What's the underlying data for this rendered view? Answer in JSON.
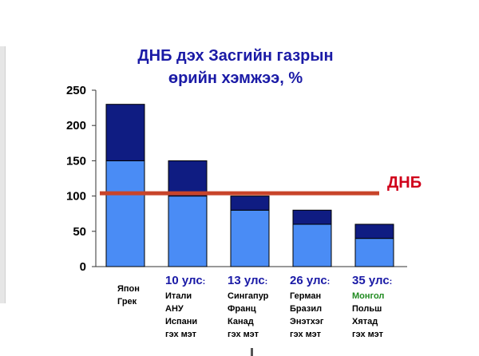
{
  "title_lines": [
    "ДНБ дэх Засгийн газрын",
    "өрийн хэмжээ, %"
  ],
  "reference": {
    "label": "ДНБ",
    "value": 104,
    "color": "#c8442a"
  },
  "colors": {
    "lower": "#4a8cf5",
    "upper": "#0f1c82",
    "title": "#1a1aa6",
    "green": "#1f8a1f"
  },
  "chart_data": {
    "type": "bar",
    "stacked": true,
    "title": "ДНБ дэх Засгийн газрын өрийн хэмжээ, %",
    "ylim": [
      0,
      250
    ],
    "yticks": [
      0,
      50,
      100,
      150,
      200,
      250
    ],
    "categories": [
      {
        "head": "",
        "lines": [
          "Япон",
          "Грек"
        ]
      },
      {
        "head": "10 улс",
        "lines": [
          "Итали",
          "АНУ",
          "Испани",
          "гэх мэт"
        ]
      },
      {
        "head": "13 улс",
        "lines": [
          "Сингапур",
          "Франц",
          "Канад",
          "гэх мэт"
        ]
      },
      {
        "head": "26 улс",
        "lines": [
          "Герман",
          "Бразил",
          "Энэтхэг",
          "гэх мэт"
        ]
      },
      {
        "head": "35 улс",
        "lines": [
          "Монгол",
          "Польш",
          "Хятад",
          "гэх мэт"
        ]
      }
    ],
    "series": [
      {
        "values": [
          150,
          100,
          80,
          60,
          40
        ]
      },
      {
        "values": [
          80,
          50,
          20,
          20,
          20
        ]
      }
    ],
    "totals": [
      230,
      150,
      100,
      80,
      60
    ]
  }
}
